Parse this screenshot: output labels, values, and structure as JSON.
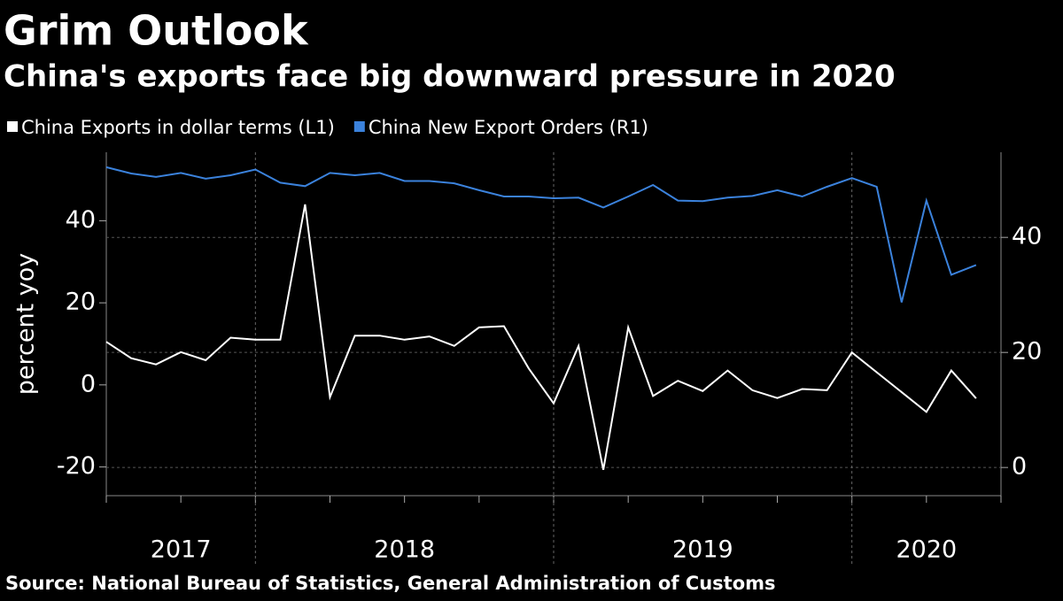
{
  "chart_data": {
    "type": "line",
    "title": "Grim Outlook",
    "subtitle": "China's exports face big downward pressure in 2020",
    "ylabel": "percent yoy",
    "source": "Source: National Bureau of Statistics, General Administration of Customs",
    "categories": [
      "2017",
      "2018",
      "2019",
      "2020"
    ],
    "xlim": [
      "2017-06",
      "2020-06"
    ],
    "ylim": [
      -27,
      56.7
    ],
    "yticks": [
      -20,
      0,
      20,
      40
    ],
    "y2lim": [
      -4.9,
      54.8
    ],
    "y2ticks": [
      0,
      20,
      40
    ],
    "grid": true,
    "series": [
      {
        "name": "China Exports in dollar terms (L1)",
        "color": "#ffffff",
        "x": [
          "2017-06",
          "2017-07",
          "2017-08",
          "2017-09",
          "2017-10",
          "2017-11",
          "2017-12",
          "2018-01",
          "2018-02",
          "2018-03",
          "2018-04",
          "2018-05",
          "2018-06",
          "2018-07",
          "2018-08",
          "2018-09",
          "2018-10",
          "2018-11",
          "2018-12",
          "2019-01",
          "2019-02",
          "2019-03",
          "2019-04",
          "2019-05",
          "2019-06",
          "2019-07",
          "2019-08",
          "2019-09",
          "2019-10",
          "2019-11",
          "2019-12",
          "2020-03",
          "2020-04",
          "2020-05"
        ],
        "values": [
          10.5,
          6.5,
          5,
          8,
          6,
          11.5,
          11,
          11,
          44,
          -3,
          12,
          12,
          11,
          11.8,
          9.5,
          14,
          14.3,
          4,
          -4.5,
          9.5,
          -20.7,
          14,
          -2.7,
          1,
          -1.5,
          3.5,
          -1.3,
          -3.2,
          -1,
          -1.3,
          7.9,
          -6.6,
          3.5,
          -3.3
        ]
      },
      {
        "name": "China New Export Orders (R1)",
        "color": "#3b82dc",
        "axis": "y2",
        "x": [
          "2017-06",
          "2017-07",
          "2017-08",
          "2017-09",
          "2017-10",
          "2017-11",
          "2017-12",
          "2018-01",
          "2018-02",
          "2018-03",
          "2018-04",
          "2018-05",
          "2018-06",
          "2018-07",
          "2018-08",
          "2018-09",
          "2018-10",
          "2018-11",
          "2018-12",
          "2019-01",
          "2019-02",
          "2019-03",
          "2019-04",
          "2019-05",
          "2019-06",
          "2019-07",
          "2019-08",
          "2019-09",
          "2019-10",
          "2019-11",
          "2019-12",
          "2020-01",
          "2020-02",
          "2020-03",
          "2020-04",
          "2020-05"
        ],
        "values": [
          52.2,
          51.1,
          50.5,
          51.2,
          50.2,
          50.8,
          51.8,
          49.5,
          48.9,
          51.2,
          50.8,
          51.2,
          49.8,
          49.8,
          49.4,
          48.2,
          47.1,
          47.1,
          46.8,
          46.9,
          45.2,
          47.1,
          49.1,
          46.4,
          46.3,
          46.9,
          47.2,
          48.2,
          47.1,
          48.8,
          50.3,
          48.8,
          28.7,
          46.4,
          33.5,
          35.2
        ]
      }
    ]
  }
}
